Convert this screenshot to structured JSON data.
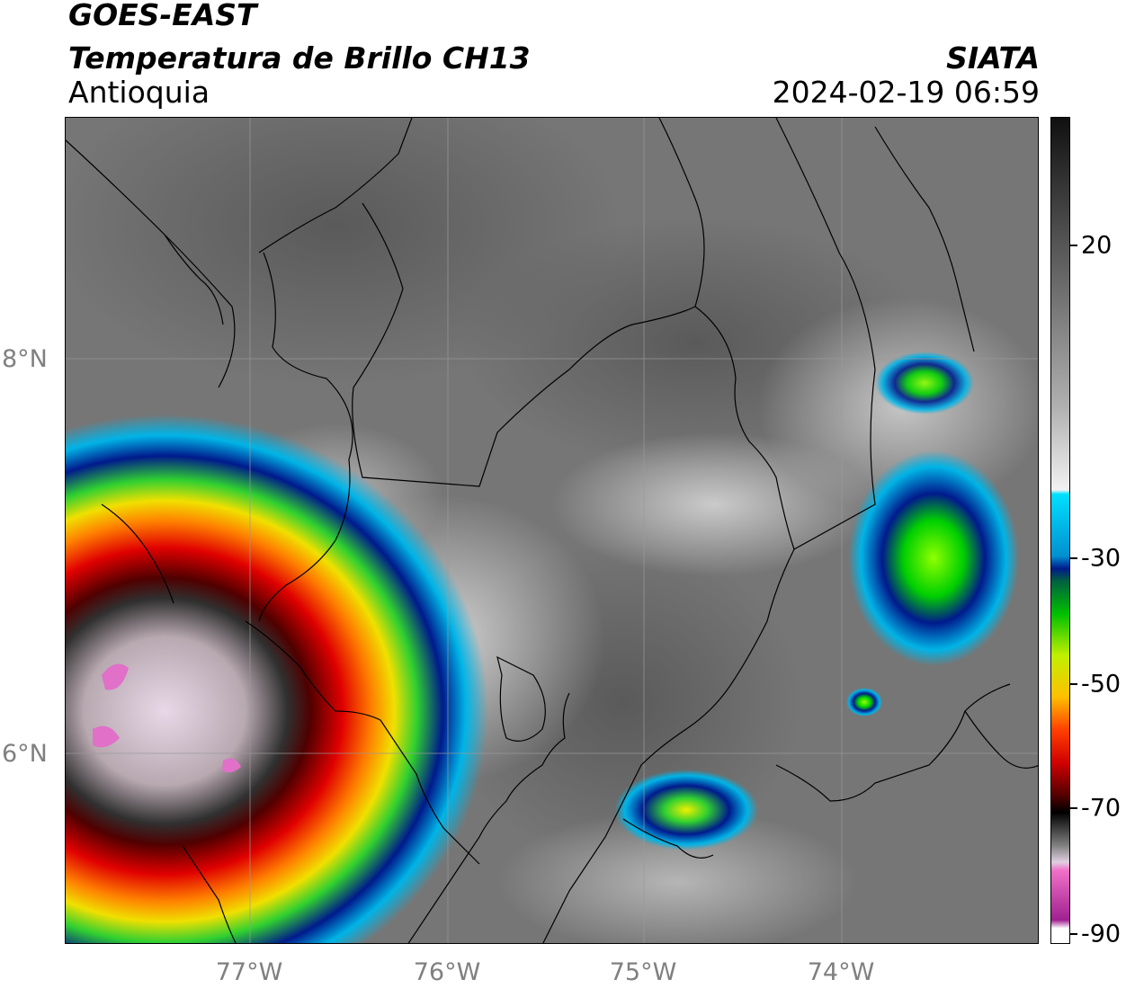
{
  "header": {
    "title_line1": "GOES-EAST",
    "title_line2": "Temperatura de Brillo CH13",
    "region": "Antioquia",
    "organization": "SIATA",
    "datetime": "2024-02-19 06:59"
  },
  "map": {
    "latitude_labels": [
      "8°N",
      "6°N"
    ],
    "longitude_labels": [
      "77°W",
      "76°W",
      "75°W",
      "74°W"
    ],
    "latitude_values": [
      8,
      6
    ],
    "longitude_values": [
      -77,
      -76,
      -75,
      -74
    ]
  },
  "colorbar": {
    "tick_labels": [
      "20",
      "-30",
      "-50",
      "-70",
      "-90"
    ],
    "tick_values": [
      20,
      -30,
      -50,
      -70,
      -90
    ],
    "colors": {
      "warm": "#404040",
      "cold_cloud": "#f0f0f0",
      "cyan": "#00b4e6",
      "dark_blue": "#001a8c",
      "green": "#00d000",
      "yellow": "#f0e000",
      "orange": "#ff8000",
      "red": "#e00000",
      "dark_red": "#500000",
      "black": "#000000",
      "pink": "#e060c0",
      "purple": "#a040a0"
    }
  }
}
